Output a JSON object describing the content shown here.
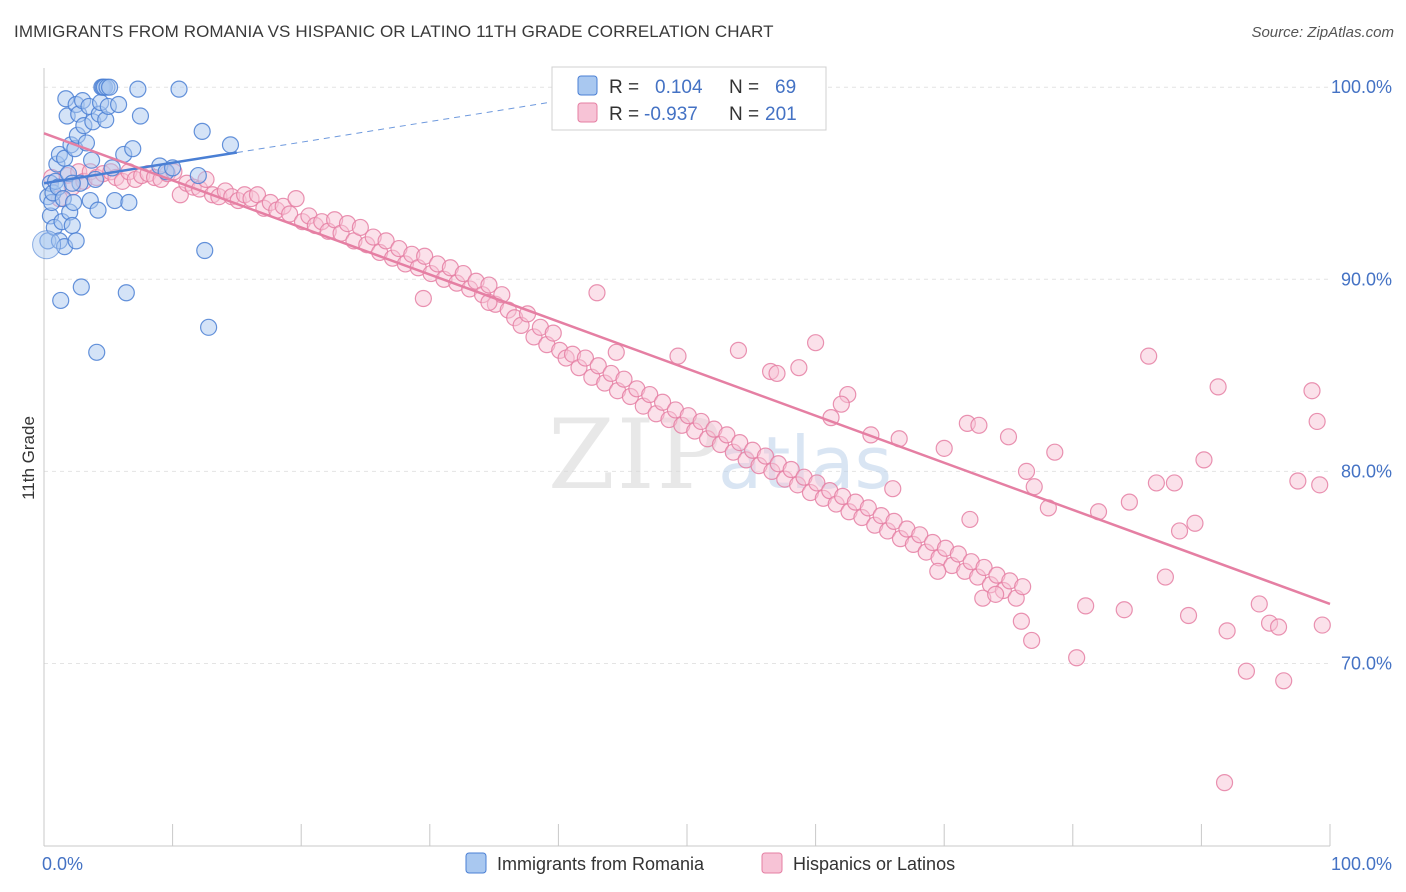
{
  "title": "IMMIGRANTS FROM ROMANIA VS HISPANIC OR LATINO 11TH GRADE CORRELATION CHART",
  "source": "Source: ZipAtlas.com",
  "watermark": {
    "zip": "ZIP",
    "atlas": "atlas"
  },
  "colors": {
    "blue": "#4a7fd4",
    "blue_fill": "#a9c8f0",
    "pink": "#e57fa3",
    "pink_fill": "#f7c3d6",
    "axis_text": "#4472c4"
  },
  "stats": {
    "blue": {
      "r_label": "R =",
      "r": "0.104",
      "n_label": "N =",
      "n": "69"
    },
    "pink": {
      "r_label": "R =",
      "r": "-0.937",
      "n_label": "N =",
      "n": "201"
    }
  },
  "legend": {
    "blue": "Immigrants from Romania",
    "pink": "Hispanics or Latinos"
  },
  "chart_data": {
    "type": "scatter",
    "xlabel": "",
    "ylabel": "11th Grade",
    "xlim": [
      0,
      100
    ],
    "ylim": [
      60.5,
      101
    ],
    "x_tick_labels": [
      "0.0%",
      "100.0%"
    ],
    "y_ticks": [
      100,
      90,
      80,
      70
    ],
    "y_tick_labels": [
      "100.0%",
      "90.0%",
      "80.0%",
      "70.0%"
    ],
    "grid": true,
    "legend_position": "bottom-center",
    "series": [
      {
        "name": "Immigrants from Romania",
        "trend": {
          "x0": 0,
          "y0": 95.0,
          "x1": 15,
          "y1": 96.6,
          "dashed_to_x": 42,
          "dashed_to_y": 99.5
        },
        "points": [
          [
            0.3,
            92.0
          ],
          [
            0.3,
            94.3
          ],
          [
            0.5,
            93.3
          ],
          [
            0.5,
            95.0
          ],
          [
            0.6,
            94.0
          ],
          [
            0.7,
            94.5
          ],
          [
            0.8,
            92.7
          ],
          [
            0.9,
            95.1
          ],
          [
            1.0,
            96.0
          ],
          [
            1.1,
            94.8
          ],
          [
            1.2,
            96.5
          ],
          [
            1.2,
            92.0
          ],
          [
            1.3,
            88.9
          ],
          [
            1.4,
            93.0
          ],
          [
            1.5,
            94.2
          ],
          [
            1.6,
            96.3
          ],
          [
            1.6,
            91.7
          ],
          [
            1.7,
            99.4
          ],
          [
            1.8,
            98.5
          ],
          [
            1.9,
            95.5
          ],
          [
            2.0,
            93.5
          ],
          [
            2.1,
            97.0
          ],
          [
            2.2,
            92.8
          ],
          [
            2.3,
            94.0
          ],
          [
            2.4,
            96.8
          ],
          [
            2.5,
            99.1
          ],
          [
            2.5,
            92.0
          ],
          [
            2.6,
            97.5
          ],
          [
            2.7,
            98.6
          ],
          [
            2.8,
            95.0
          ],
          [
            2.9,
            89.6
          ],
          [
            3.0,
            99.3
          ],
          [
            3.1,
            98.0
          ],
          [
            3.3,
            97.1
          ],
          [
            3.5,
            99.0
          ],
          [
            3.6,
            94.1
          ],
          [
            3.8,
            98.2
          ],
          [
            4.0,
            95.2
          ],
          [
            4.2,
            93.6
          ],
          [
            4.3,
            98.6
          ],
          [
            4.4,
            99.2
          ],
          [
            4.5,
            100.0
          ],
          [
            4.6,
            100.0
          ],
          [
            4.7,
            100.0
          ],
          [
            4.8,
            98.3
          ],
          [
            4.9,
            100.0
          ],
          [
            5.0,
            99.0
          ],
          [
            5.1,
            100.0
          ],
          [
            5.3,
            95.8
          ],
          [
            5.5,
            94.1
          ],
          [
            5.8,
            99.1
          ],
          [
            6.2,
            96.5
          ],
          [
            6.4,
            89.3
          ],
          [
            6.6,
            94.0
          ],
          [
            6.9,
            96.8
          ],
          [
            7.3,
            99.9
          ],
          [
            7.5,
            98.5
          ],
          [
            9.0,
            95.9
          ],
          [
            9.5,
            95.6
          ],
          [
            10.0,
            95.8
          ],
          [
            10.5,
            99.9
          ],
          [
            12.0,
            95.4
          ],
          [
            12.3,
            97.7
          ],
          [
            12.5,
            91.5
          ],
          [
            12.8,
            87.5
          ],
          [
            14.5,
            97.0
          ],
          [
            4.1,
            86.2
          ],
          [
            2.2,
            95.0
          ],
          [
            3.7,
            96.2
          ]
        ]
      },
      {
        "name": "Hispanics or Latinos",
        "trend": {
          "x0": 0,
          "y0": 97.6,
          "x1": 100,
          "y1": 73.1
        },
        "points": [
          [
            0.6,
            95.3
          ],
          [
            1.2,
            94.2
          ],
          [
            1.8,
            95.4
          ],
          [
            2.2,
            94.8
          ],
          [
            2.7,
            95.6
          ],
          [
            3.1,
            95.1
          ],
          [
            3.6,
            95.6
          ],
          [
            4.1,
            95.3
          ],
          [
            4.6,
            95.5
          ],
          [
            5.2,
            95.6
          ],
          [
            5.6,
            95.3
          ],
          [
            6.1,
            95.1
          ],
          [
            6.6,
            95.6
          ],
          [
            7.1,
            95.2
          ],
          [
            7.6,
            95.4
          ],
          [
            8.1,
            95.5
          ],
          [
            8.6,
            95.3
          ],
          [
            9.1,
            95.2
          ],
          [
            9.6,
            95.5
          ],
          [
            10.1,
            95.6
          ],
          [
            10.6,
            94.4
          ],
          [
            11.1,
            95.0
          ],
          [
            11.6,
            94.8
          ],
          [
            12.1,
            94.7
          ],
          [
            12.6,
            95.2
          ],
          [
            13.1,
            94.4
          ],
          [
            13.6,
            94.3
          ],
          [
            14.1,
            94.6
          ],
          [
            14.6,
            94.3
          ],
          [
            15.1,
            94.1
          ],
          [
            15.6,
            94.4
          ],
          [
            16.1,
            94.2
          ],
          [
            16.6,
            94.4
          ],
          [
            17.1,
            93.7
          ],
          [
            17.6,
            94.0
          ],
          [
            18.1,
            93.6
          ],
          [
            18.6,
            93.8
          ],
          [
            19.1,
            93.4
          ],
          [
            19.6,
            94.2
          ],
          [
            20.1,
            93.0
          ],
          [
            20.6,
            93.3
          ],
          [
            21.1,
            92.8
          ],
          [
            21.6,
            93.0
          ],
          [
            22.1,
            92.5
          ],
          [
            22.6,
            93.1
          ],
          [
            23.1,
            92.4
          ],
          [
            23.6,
            92.9
          ],
          [
            24.1,
            92.0
          ],
          [
            24.6,
            92.7
          ],
          [
            25.1,
            91.8
          ],
          [
            25.6,
            92.2
          ],
          [
            26.1,
            91.4
          ],
          [
            26.6,
            92.0
          ],
          [
            27.1,
            91.1
          ],
          [
            27.6,
            91.6
          ],
          [
            28.1,
            90.8
          ],
          [
            28.6,
            91.3
          ],
          [
            29.1,
            90.6
          ],
          [
            29.6,
            91.2
          ],
          [
            30.1,
            90.3
          ],
          [
            30.6,
            90.8
          ],
          [
            31.1,
            90.0
          ],
          [
            31.6,
            90.6
          ],
          [
            32.1,
            89.8
          ],
          [
            32.6,
            90.3
          ],
          [
            33.1,
            89.5
          ],
          [
            33.6,
            89.9
          ],
          [
            34.1,
            89.2
          ],
          [
            34.6,
            89.7
          ],
          [
            35.1,
            88.7
          ],
          [
            35.6,
            89.2
          ],
          [
            36.1,
            88.4
          ],
          [
            36.6,
            88.0
          ],
          [
            37.1,
            87.6
          ],
          [
            37.6,
            88.2
          ],
          [
            38.1,
            87.0
          ],
          [
            38.6,
            87.5
          ],
          [
            39.1,
            86.6
          ],
          [
            39.6,
            87.2
          ],
          [
            40.1,
            86.3
          ],
          [
            40.6,
            85.9
          ],
          [
            41.1,
            86.1
          ],
          [
            41.6,
            85.4
          ],
          [
            42.1,
            85.9
          ],
          [
            42.6,
            84.9
          ],
          [
            43.1,
            85.5
          ],
          [
            43.6,
            84.6
          ],
          [
            44.1,
            85.1
          ],
          [
            44.6,
            84.2
          ],
          [
            45.1,
            84.8
          ],
          [
            45.6,
            83.9
          ],
          [
            46.1,
            84.3
          ],
          [
            46.6,
            83.4
          ],
          [
            47.1,
            84.0
          ],
          [
            47.6,
            83.0
          ],
          [
            48.1,
            83.6
          ],
          [
            48.6,
            82.7
          ],
          [
            49.1,
            83.2
          ],
          [
            49.6,
            82.4
          ],
          [
            50.1,
            82.9
          ],
          [
            50.6,
            82.1
          ],
          [
            51.1,
            82.6
          ],
          [
            51.6,
            81.7
          ],
          [
            52.1,
            82.2
          ],
          [
            52.6,
            81.4
          ],
          [
            53.1,
            81.9
          ],
          [
            53.6,
            81.0
          ],
          [
            54.1,
            81.5
          ],
          [
            54.6,
            80.6
          ],
          [
            55.1,
            81.1
          ],
          [
            55.6,
            80.3
          ],
          [
            56.1,
            80.8
          ],
          [
            56.6,
            80.0
          ],
          [
            57.1,
            80.4
          ],
          [
            57.6,
            79.6
          ],
          [
            58.1,
            80.1
          ],
          [
            58.6,
            79.3
          ],
          [
            59.1,
            79.7
          ],
          [
            59.6,
            78.9
          ],
          [
            60.1,
            79.4
          ],
          [
            60.6,
            78.6
          ],
          [
            61.1,
            79.0
          ],
          [
            61.6,
            78.3
          ],
          [
            62.1,
            78.7
          ],
          [
            62.6,
            77.9
          ],
          [
            63.1,
            78.4
          ],
          [
            63.6,
            77.6
          ],
          [
            64.1,
            78.1
          ],
          [
            64.6,
            77.2
          ],
          [
            65.1,
            77.7
          ],
          [
            65.6,
            76.9
          ],
          [
            66.1,
            77.4
          ],
          [
            66.6,
            76.5
          ],
          [
            67.1,
            77.0
          ],
          [
            67.6,
            76.2
          ],
          [
            68.1,
            76.7
          ],
          [
            68.6,
            75.8
          ],
          [
            69.1,
            76.3
          ],
          [
            69.6,
            75.5
          ],
          [
            70.1,
            76.0
          ],
          [
            70.6,
            75.1
          ],
          [
            71.1,
            75.7
          ],
          [
            71.6,
            74.8
          ],
          [
            72.1,
            75.3
          ],
          [
            72.6,
            74.5
          ],
          [
            73.1,
            75.0
          ],
          [
            73.6,
            74.1
          ],
          [
            74.1,
            74.6
          ],
          [
            74.6,
            73.8
          ],
          [
            75.1,
            74.3
          ],
          [
            75.6,
            73.4
          ],
          [
            76.1,
            74.0
          ],
          [
            29.5,
            89.0
          ],
          [
            34.6,
            88.8
          ],
          [
            43.0,
            89.3
          ],
          [
            44.5,
            86.2
          ],
          [
            49.3,
            86.0
          ],
          [
            54.0,
            86.3
          ],
          [
            56.5,
            85.2
          ],
          [
            57.0,
            85.1
          ],
          [
            58.7,
            85.4
          ],
          [
            60.0,
            86.7
          ],
          [
            61.2,
            82.8
          ],
          [
            62.5,
            84.0
          ],
          [
            64.3,
            81.9
          ],
          [
            66.5,
            81.7
          ],
          [
            70.0,
            81.2
          ],
          [
            71.8,
            82.5
          ],
          [
            75.0,
            81.8
          ],
          [
            76.4,
            80.0
          ],
          [
            77.0,
            79.2
          ],
          [
            78.6,
            81.0
          ],
          [
            82.0,
            77.9
          ],
          [
            84.4,
            78.4
          ],
          [
            85.9,
            86.0
          ],
          [
            86.5,
            79.4
          ],
          [
            87.9,
            79.4
          ],
          [
            88.3,
            76.9
          ],
          [
            89.0,
            72.5
          ],
          [
            90.2,
            80.6
          ],
          [
            91.3,
            84.4
          ],
          [
            92.0,
            71.7
          ],
          [
            93.5,
            69.6
          ],
          [
            94.5,
            73.1
          ],
          [
            95.3,
            72.1
          ],
          [
            96.0,
            71.9
          ],
          [
            97.5,
            79.5
          ],
          [
            99.2,
            79.3
          ],
          [
            98.6,
            84.2
          ],
          [
            99.4,
            72.0
          ],
          [
            96.4,
            69.1
          ],
          [
            99.0,
            82.6
          ],
          [
            91.8,
            63.8
          ],
          [
            80.3,
            70.3
          ],
          [
            73.0,
            73.4
          ],
          [
            76.8,
            71.2
          ],
          [
            74.0,
            73.6
          ],
          [
            84.0,
            72.8
          ],
          [
            87.2,
            74.5
          ],
          [
            89.5,
            77.3
          ],
          [
            62.0,
            83.5
          ],
          [
            66.0,
            79.1
          ],
          [
            72.7,
            82.4
          ],
          [
            76.0,
            72.2
          ],
          [
            78.1,
            78.1
          ],
          [
            81.0,
            73.0
          ],
          [
            69.5,
            74.8
          ],
          [
            72.0,
            77.5
          ]
        ]
      }
    ]
  }
}
